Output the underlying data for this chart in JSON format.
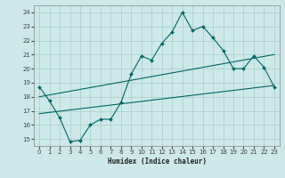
{
  "xlabel": "Humidex (Indice chaleur)",
  "background_color": "#cce8e8",
  "grid_color": "#aacccc",
  "line_color": "#006666",
  "xlim": [
    -0.5,
    23.5
  ],
  "ylim": [
    14.5,
    24.5
  ],
  "yticks": [
    15,
    16,
    17,
    18,
    19,
    20,
    21,
    22,
    23,
    24
  ],
  "xticks": [
    0,
    1,
    2,
    3,
    4,
    5,
    6,
    7,
    8,
    9,
    10,
    11,
    12,
    13,
    14,
    15,
    16,
    17,
    18,
    19,
    20,
    21,
    22,
    23
  ],
  "line1_x": [
    0,
    1,
    2,
    3,
    4,
    5,
    6,
    7,
    8,
    9,
    10,
    11,
    12,
    13,
    14,
    15,
    16,
    17,
    18,
    19,
    20,
    21,
    22,
    23
  ],
  "line1_y": [
    18.7,
    17.7,
    16.5,
    14.8,
    14.9,
    16.0,
    16.4,
    16.4,
    17.6,
    19.6,
    20.9,
    20.6,
    21.8,
    22.6,
    24.0,
    22.7,
    23.0,
    22.2,
    21.3,
    20.0,
    20.0,
    20.9,
    20.1,
    18.7
  ],
  "line2_x": [
    0,
    23
  ],
  "line2_y": [
    18.0,
    21.0
  ],
  "line3_x": [
    0,
    23
  ],
  "line3_y": [
    16.8,
    18.8
  ]
}
